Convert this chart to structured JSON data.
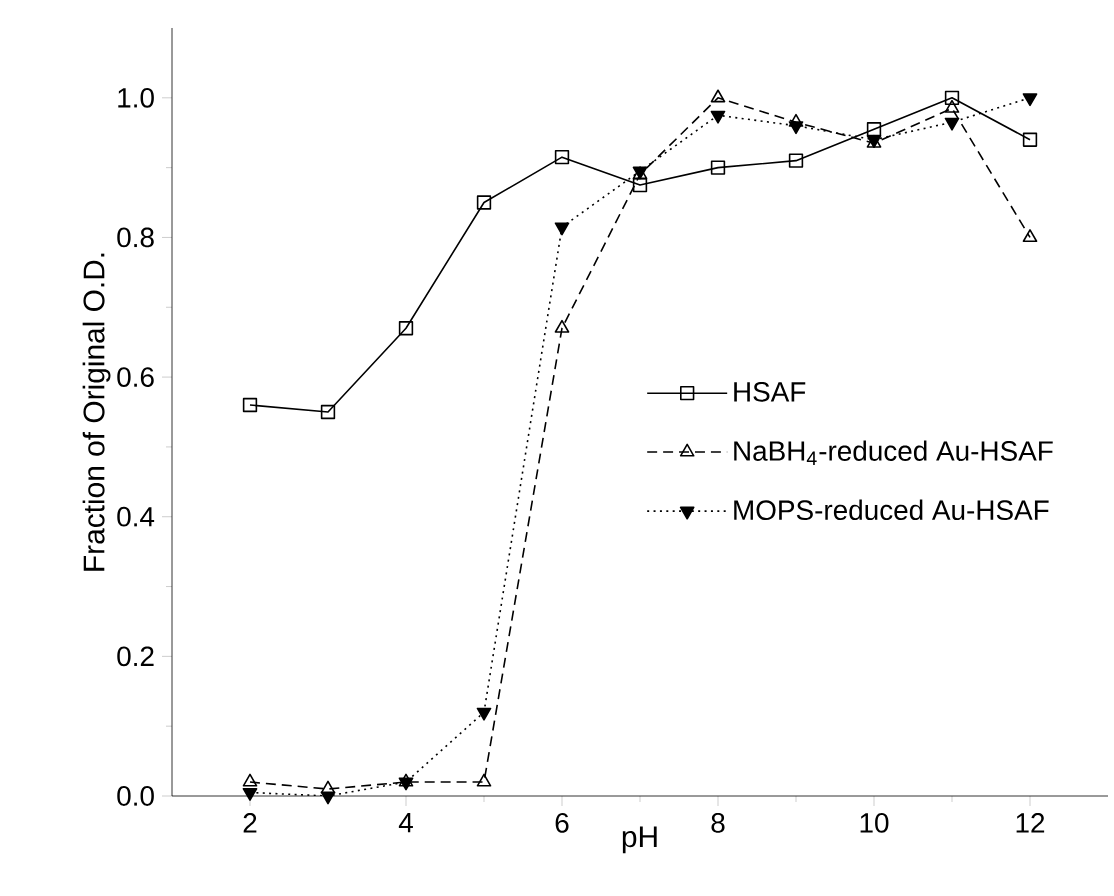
{
  "chart_data": {
    "type": "line",
    "xlabel": "pH",
    "ylabel": "Fraction of Original O.D.",
    "x": [
      2,
      3,
      4,
      5,
      6,
      7,
      8,
      9,
      10,
      11,
      12
    ],
    "xlim": [
      1,
      13
    ],
    "ylim": [
      0,
      1.1
    ],
    "xticks": [
      2,
      4,
      6,
      8,
      10,
      12
    ],
    "yticks": [
      {
        "value": 0,
        "label": "0.0"
      },
      0.2,
      0.4,
      0.6,
      0.8,
      {
        "value": 1,
        "label": "1.0"
      }
    ],
    "legend": "right",
    "grid": false,
    "series": [
      {
        "name": "HSAF",
        "color": "#000000",
        "marker": "square",
        "line_style": "solid",
        "values": [
          0.56,
          0.55,
          0.67,
          0.85,
          0.915,
          0.875,
          0.9,
          0.91,
          0.955,
          1.0,
          0.94
        ]
      },
      {
        "name": "NaBH$_{4}$-reduced Au-HSAF",
        "color": "#000000",
        "marker": "triangle",
        "line_style": "dashed",
        "values": [
          0.02,
          0.01,
          0.02,
          0.02,
          0.67,
          0.89,
          1.0,
          0.965,
          0.935,
          0.985,
          0.8
        ]
      },
      {
        "name": "MOPS-reduced Au-HSAF",
        "color": "#000000",
        "marker": "triangle-down",
        "line_style": "dotted",
        "values": [
          0.005,
          0.0,
          0.02,
          0.12,
          0.815,
          0.895,
          0.975,
          0.96,
          0.94,
          0.965,
          1.0
        ]
      }
    ]
  }
}
